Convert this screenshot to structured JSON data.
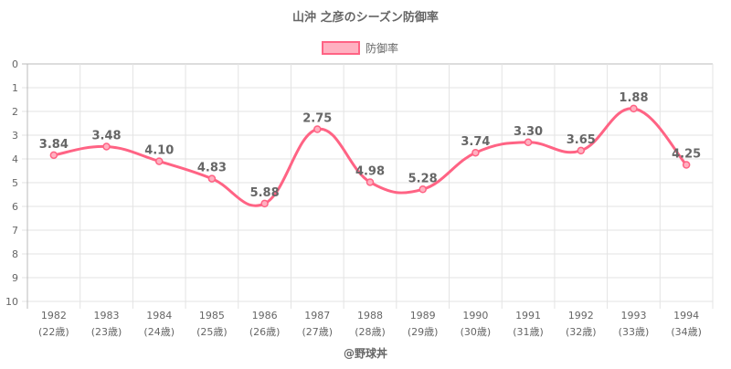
{
  "chart_data": {
    "type": "line",
    "title": "山沖 之彦のシーズン防御率",
    "legend": {
      "label": "防御率",
      "position": "top"
    },
    "categories": [
      "1982",
      "1983",
      "1984",
      "1985",
      "1986",
      "1987",
      "1988",
      "1989",
      "1990",
      "1991",
      "1992",
      "1993",
      "1994"
    ],
    "ages": [
      "(22歳)",
      "(23歳)",
      "(24歳)",
      "(25歳)",
      "(26歳)",
      "(27歳)",
      "(28歳)",
      "(29歳)",
      "(30歳)",
      "(31歳)",
      "(32歳)",
      "(33歳)",
      "(34歳)"
    ],
    "series": [
      {
        "name": "防御率",
        "values": [
          3.84,
          3.48,
          4.1,
          4.83,
          5.88,
          2.75,
          4.98,
          5.28,
          3.74,
          3.3,
          3.65,
          1.88,
          4.25
        ]
      }
    ],
    "value_labels": [
      "3.84",
      "3.48",
      "4.10",
      "4.83",
      "5.88",
      "2.75",
      "4.98",
      "5.28",
      "3.74",
      "3.30",
      "3.65",
      "1.88",
      "4.25"
    ],
    "ylim": [
      0,
      10
    ],
    "y_reversed": true,
    "y_ticks": [
      "0",
      "1",
      "2",
      "3",
      "4",
      "5",
      "6",
      "7",
      "8",
      "9",
      "10"
    ],
    "grid": true,
    "colors": {
      "line": "#ff6384",
      "fill": "#ffb1c1"
    }
  },
  "footer": {
    "credit": "@野球丼"
  }
}
